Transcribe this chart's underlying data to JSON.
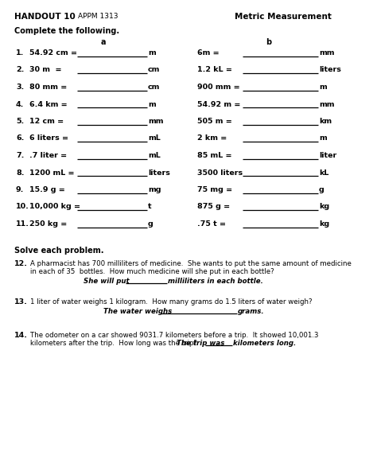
{
  "title_left": "HANDOUT 10",
  "title_left2": "APPM 1313",
  "title_right": "Metric Measurement",
  "bg_color": "#ffffff",
  "text_color": "#000000",
  "header": "Complete the following.",
  "col_a_header": "a",
  "col_b_header": "b",
  "col_a": [
    {
      "num": "1.",
      "left": "54.92 cm =",
      "right": "m"
    },
    {
      "num": "2.",
      "left": "30 m  =",
      "right": "cm"
    },
    {
      "num": "3.",
      "left": "80 mm =",
      "right": "cm"
    },
    {
      "num": "4.",
      "left": "6.4 km =",
      "right": "m"
    },
    {
      "num": "5.",
      "left": "12 cm =",
      "right": "mm"
    },
    {
      "num": "6.",
      "left": "6 liters =",
      "right": "mL"
    },
    {
      "num": "7.",
      "left": ".7 liter =",
      "right": "mL"
    },
    {
      "num": "8.",
      "left": "1200 mL =",
      "right": "liters"
    },
    {
      "num": "9.",
      "left": "15.9 g =",
      "right": "mg"
    },
    {
      "num": "10.",
      "left": "10,000 kg =",
      "right": "t"
    },
    {
      "num": "11.",
      "left": "250 kg =",
      "right": "g"
    }
  ],
  "col_b": [
    {
      "left": "6m =",
      "right": "mm"
    },
    {
      "left": "1.2 kL =",
      "right": "liters"
    },
    {
      "left": "900 mm =",
      "right": "m"
    },
    {
      "left": "54.92 m =",
      "right": "mm"
    },
    {
      "left": "505 m =",
      "right": "km"
    },
    {
      "left": "2 km =",
      "right": "m"
    },
    {
      "left": "85 mL =",
      "right": "liter"
    },
    {
      "left": "3500 liters",
      "right": "kL"
    },
    {
      "left": "75 mg =",
      "right": "g"
    },
    {
      "left": "875 g =",
      "right": "kg"
    },
    {
      "left": ".75 t =",
      "right": "kg"
    }
  ],
  "solve_header": "Solve each problem.",
  "p12_line1": "A pharmacist has 700 milliliters of medicine.  She wants to put the same amount of medicine",
  "p12_line2": "in each of 35  bottles.  How much medicine will she put in each bottle?",
  "p12_ans1": "She will put",
  "p12_ans2": "milliliters in each bottle.",
  "p13_line1": "1 liter of water weighs 1 kilogram.  How many grams do 1.5 liters of water weigh?",
  "p13_ans1": "The water weighs",
  "p13_ans2": "grams.",
  "p14_line1": "The odometer on a car showed 9031.7 kilometers before a trip.  It showed 10,001.3",
  "p14_line2": "kilometers after the trip.  How long was the trip?  ",
  "p14_ans1": "The trip was",
  "p14_ans2": "kilometers long."
}
